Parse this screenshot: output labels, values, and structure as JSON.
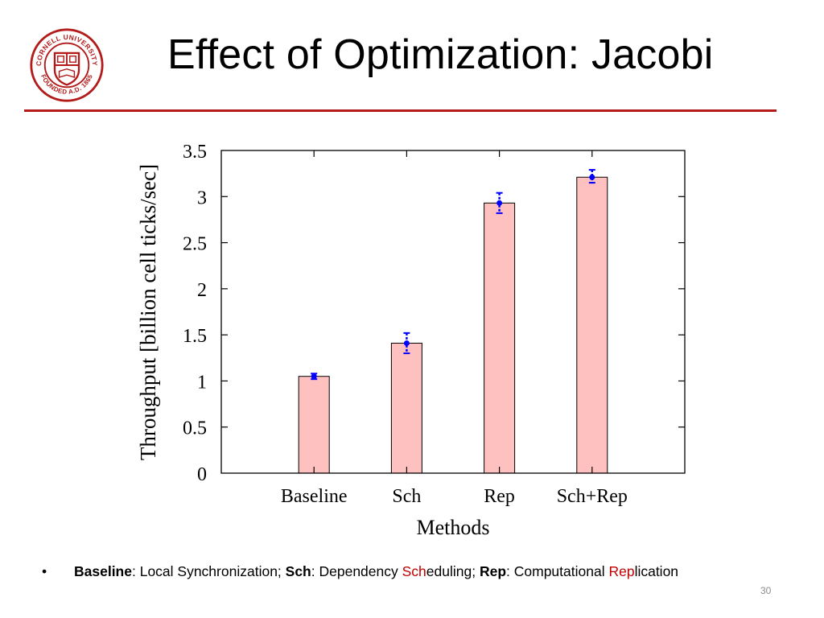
{
  "slide": {
    "title": "Effect of Optimization: Jacobi",
    "page_number": "30",
    "accent_color": "#b31b1b",
    "logo": {
      "icon": "cornell-university-seal-icon",
      "text": "CORNELL UNIVERSITY · FOUNDED A.D. 1865"
    }
  },
  "bullet": {
    "symbol": "•",
    "term1": "Baseline",
    "desc1": ": Local Synchronization; ",
    "term2": "Sch",
    "desc2a": ": Dependency ",
    "hl2": "Sch",
    "desc2b": "eduling;  ",
    "term3": "Rep",
    "desc3a": ": Computational ",
    "hl3": "Rep",
    "desc3b": "lication",
    "highlight_color": "#c00000"
  },
  "chart_data": {
    "type": "bar",
    "categories": [
      "Baseline",
      "Sch",
      "Rep",
      "Sch+Rep"
    ],
    "values": [
      1.05,
      1.41,
      2.93,
      3.21
    ],
    "error_low": [
      1.02,
      1.3,
      2.82,
      3.15
    ],
    "error_high": [
      1.08,
      1.52,
      3.04,
      3.29
    ],
    "xlabel": "Methods",
    "ylabel": "Throughput [billion cell ticks/sec]",
    "ylim": [
      0,
      3.5
    ],
    "yticks": [
      "0",
      "0.5",
      "1",
      "1.5",
      "2",
      "2.5",
      "3",
      "3.5"
    ],
    "grid": false,
    "bar_color": "#ffc0c0",
    "error_color": "#0000ff"
  }
}
